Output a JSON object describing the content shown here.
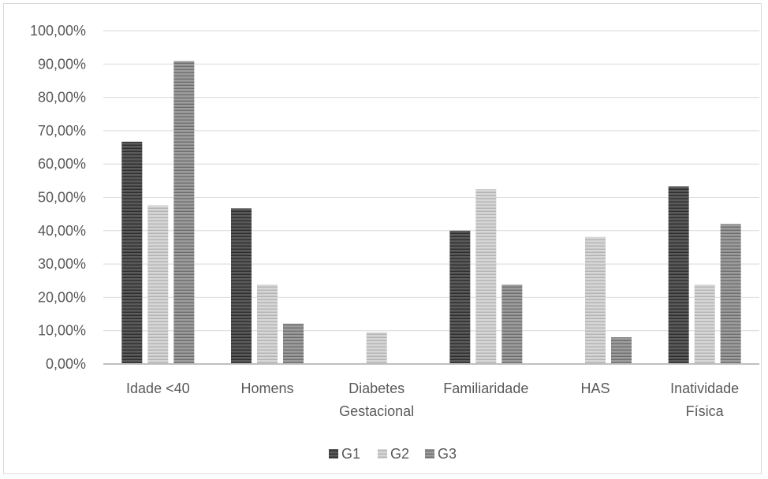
{
  "chart_data": {
    "type": "bar",
    "title": "",
    "xlabel": "",
    "ylabel": "",
    "ylim": [
      0,
      100
    ],
    "yticks": [
      0,
      10,
      20,
      30,
      40,
      50,
      60,
      70,
      80,
      90,
      100
    ],
    "ytick_labels": [
      "0,00%",
      "10,00%",
      "20,00%",
      "30,00%",
      "40,00%",
      "50,00%",
      "60,00%",
      "70,00%",
      "80,00%",
      "90,00%",
      "100,00%"
    ],
    "categories": [
      [
        "Idade <40"
      ],
      [
        "Homens"
      ],
      [
        "Diabetes",
        "Gestacional"
      ],
      [
        "Familiaridade"
      ],
      [
        "HAS"
      ],
      [
        "Inatividade",
        "Física"
      ]
    ],
    "series": [
      {
        "name": "G1",
        "color": "#4a4a4a",
        "values": [
          66.7,
          46.7,
          0,
          40.0,
          0,
          53.3
        ]
      },
      {
        "name": "G2",
        "color": "#c8c8c8",
        "values": [
          47.6,
          23.8,
          9.5,
          52.4,
          38.1,
          23.8
        ]
      },
      {
        "name": "G3",
        "color": "#8c8c8c",
        "values": [
          90.9,
          12.1,
          0,
          23.8,
          8.0,
          42.0
        ]
      }
    ],
    "grid": true,
    "legend_position": "bottom"
  }
}
